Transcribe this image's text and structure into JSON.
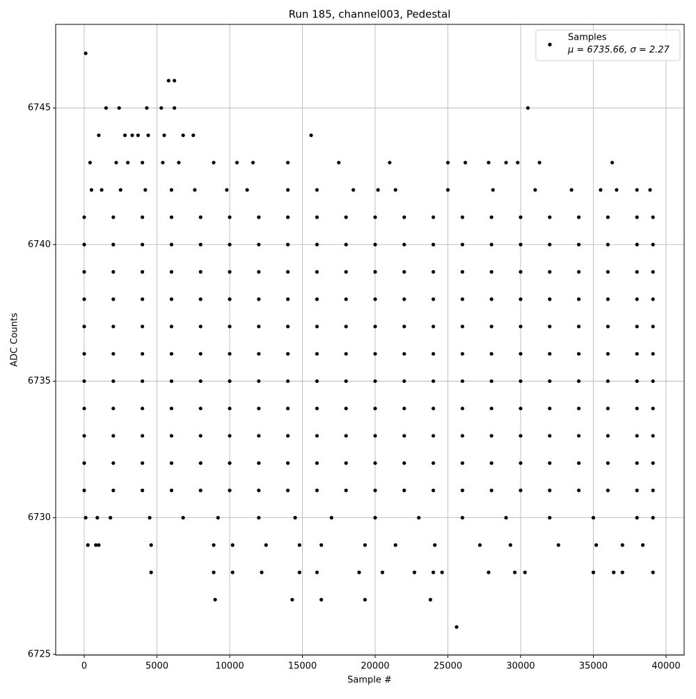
{
  "chart_data": {
    "type": "scatter",
    "title": "Run 185, channel003, Pedestal",
    "x_label": "Sample #",
    "y_label": "ADC Counts",
    "legend_note": "μ = 6735.66, σ = 2.27",
    "legend": "upper right",
    "grid": true,
    "xlim": [
      -1962,
      41244
    ],
    "ylim": [
      6724.97,
      6748.06
    ],
    "xticks": [
      0,
      5000,
      10000,
      15000,
      20000,
      25000,
      30000,
      35000,
      40000
    ],
    "yticks": [
      6725,
      6730,
      6735,
      6740,
      6745
    ],
    "x": [
      0,
      2000,
      4000,
      6000,
      8000,
      10000,
      12000,
      14000,
      16000,
      18000,
      20000,
      22000,
      24000,
      26000,
      28000,
      30000,
      32000,
      34000,
      36000,
      38000,
      39100,
      0,
      2000,
      4000,
      6000,
      8000,
      10000,
      12000,
      14000,
      16000,
      18000,
      20000,
      22000,
      24000,
      26000,
      28000,
      30000,
      32000,
      34000,
      36000,
      38000,
      39100,
      0,
      2000,
      4000,
      6000,
      8000,
      10000,
      12000,
      14000,
      16000,
      18000,
      20000,
      22000,
      24000,
      26000,
      28000,
      30000,
      32000,
      34000,
      36000,
      38000,
      39100,
      0,
      2000,
      4000,
      6000,
      8000,
      10000,
      12000,
      14000,
      16000,
      18000,
      20000,
      22000,
      24000,
      26000,
      28000,
      30000,
      32000,
      34000,
      36000,
      38000,
      39100,
      0,
      2000,
      4000,
      6000,
      8000,
      10000,
      12000,
      14000,
      16000,
      18000,
      20000,
      22000,
      24000,
      26000,
      28000,
      30000,
      32000,
      34000,
      36000,
      38000,
      39100,
      0,
      2000,
      4000,
      6000,
      8000,
      10000,
      12000,
      14000,
      16000,
      18000,
      20000,
      22000,
      24000,
      26000,
      28000,
      30000,
      32000,
      34000,
      36000,
      38000,
      39100,
      0,
      2000,
      4000,
      6000,
      8000,
      10000,
      12000,
      14000,
      16000,
      18000,
      20000,
      22000,
      24000,
      26000,
      28000,
      30000,
      32000,
      34000,
      36000,
      38000,
      39100,
      0,
      2000,
      4000,
      6000,
      8000,
      10000,
      12000,
      14000,
      16000,
      18000,
      20000,
      22000,
      24000,
      26000,
      28000,
      30000,
      32000,
      34000,
      36000,
      38000,
      39100,
      0,
      2000,
      4000,
      6000,
      8000,
      10000,
      12000,
      14000,
      16000,
      18000,
      20000,
      22000,
      24000,
      26000,
      28000,
      30000,
      32000,
      34000,
      36000,
      38000,
      39100,
      0,
      2000,
      4000,
      6000,
      8000,
      10000,
      12000,
      14000,
      16000,
      18000,
      20000,
      22000,
      24000,
      26000,
      28000,
      30000,
      32000,
      34000,
      36000,
      38000,
      39100,
      0,
      2000,
      4000,
      6000,
      8000,
      10000,
      12000,
      14000,
      16000,
      18000,
      20000,
      22000,
      24000,
      26000,
      28000,
      30000,
      32000,
      34000,
      36000,
      38000,
      39100,
      100,
      5800,
      6200,
      1500,
      2400,
      4300,
      5300,
      6200,
      30500,
      1000,
      2800,
      3300,
      3700,
      4400,
      5500,
      6800,
      7500,
      15600,
      400,
      2200,
      3000,
      4000,
      5400,
      6500,
      8900,
      10500,
      11600,
      14000,
      17500,
      21000,
      25000,
      26200,
      27800,
      29000,
      29800,
      31300,
      36300,
      500,
      1200,
      2500,
      4200,
      6000,
      7600,
      9800,
      11200,
      14000,
      16000,
      18500,
      20200,
      21400,
      25000,
      28100,
      31000,
      33500,
      35500,
      36600,
      38000,
      38900,
      100,
      900,
      1800,
      4500,
      6800,
      9200,
      12000,
      14500,
      17000,
      20000,
      23000,
      26000,
      29000,
      32000,
      35000,
      38000,
      39100,
      250,
      800,
      1000,
      4600,
      8900,
      10200,
      12500,
      14800,
      16300,
      19300,
      21400,
      24100,
      27200,
      29300,
      32600,
      35200,
      37000,
      38400,
      4600,
      8900,
      10200,
      12200,
      14800,
      16000,
      18900,
      20500,
      22700,
      24000,
      24600,
      27800,
      29600,
      30300,
      35000,
      36400,
      37000,
      39100,
      9000,
      14300,
      16300,
      19300,
      23800,
      25600
    ],
    "series": [
      {
        "name": "Samples",
        "color": "#000000",
        "values": [
          6731,
          6731,
          6731,
          6731,
          6731,
          6731,
          6731,
          6731,
          6731,
          6731,
          6731,
          6731,
          6731,
          6731,
          6731,
          6731,
          6731,
          6731,
          6731,
          6731,
          6731,
          6732,
          6732,
          6732,
          6732,
          6732,
          6732,
          6732,
          6732,
          6732,
          6732,
          6732,
          6732,
          6732,
          6732,
          6732,
          6732,
          6732,
          6732,
          6732,
          6732,
          6732,
          6733,
          6733,
          6733,
          6733,
          6733,
          6733,
          6733,
          6733,
          6733,
          6733,
          6733,
          6733,
          6733,
          6733,
          6733,
          6733,
          6733,
          6733,
          6733,
          6733,
          6733,
          6734,
          6734,
          6734,
          6734,
          6734,
          6734,
          6734,
          6734,
          6734,
          6734,
          6734,
          6734,
          6734,
          6734,
          6734,
          6734,
          6734,
          6734,
          6734,
          6734,
          6734,
          6735,
          6735,
          6735,
          6735,
          6735,
          6735,
          6735,
          6735,
          6735,
          6735,
          6735,
          6735,
          6735,
          6735,
          6735,
          6735,
          6735,
          6735,
          6735,
          6735,
          6735,
          6736,
          6736,
          6736,
          6736,
          6736,
          6736,
          6736,
          6736,
          6736,
          6736,
          6736,
          6736,
          6736,
          6736,
          6736,
          6736,
          6736,
          6736,
          6736,
          6736,
          6736,
          6737,
          6737,
          6737,
          6737,
          6737,
          6737,
          6737,
          6737,
          6737,
          6737,
          6737,
          6737,
          6737,
          6737,
          6737,
          6737,
          6737,
          6737,
          6737,
          6737,
          6737,
          6738,
          6738,
          6738,
          6738,
          6738,
          6738,
          6738,
          6738,
          6738,
          6738,
          6738,
          6738,
          6738,
          6738,
          6738,
          6738,
          6738,
          6738,
          6738,
          6738,
          6738,
          6739,
          6739,
          6739,
          6739,
          6739,
          6739,
          6739,
          6739,
          6739,
          6739,
          6739,
          6739,
          6739,
          6739,
          6739,
          6739,
          6739,
          6739,
          6739,
          6739,
          6739,
          6740,
          6740,
          6740,
          6740,
          6740,
          6740,
          6740,
          6740,
          6740,
          6740,
          6740,
          6740,
          6740,
          6740,
          6740,
          6740,
          6740,
          6740,
          6740,
          6740,
          6740,
          6741,
          6741,
          6741,
          6741,
          6741,
          6741,
          6741,
          6741,
          6741,
          6741,
          6741,
          6741,
          6741,
          6741,
          6741,
          6741,
          6741,
          6741,
          6741,
          6741,
          6741,
          6747,
          6746,
          6746,
          6745,
          6745,
          6745,
          6745,
          6745,
          6745,
          6744,
          6744,
          6744,
          6744,
          6744,
          6744,
          6744,
          6744,
          6744,
          6743,
          6743,
          6743,
          6743,
          6743,
          6743,
          6743,
          6743,
          6743,
          6743,
          6743,
          6743,
          6743,
          6743,
          6743,
          6743,
          6743,
          6743,
          6743,
          6742,
          6742,
          6742,
          6742,
          6742,
          6742,
          6742,
          6742,
          6742,
          6742,
          6742,
          6742,
          6742,
          6742,
          6742,
          6742,
          6742,
          6742,
          6742,
          6742,
          6742,
          6730,
          6730,
          6730,
          6730,
          6730,
          6730,
          6730,
          6730,
          6730,
          6730,
          6730,
          6730,
          6730,
          6730,
          6730,
          6730,
          6730,
          6729,
          6729,
          6729,
          6729,
          6729,
          6729,
          6729,
          6729,
          6729,
          6729,
          6729,
          6729,
          6729,
          6729,
          6729,
          6729,
          6729,
          6729,
          6728,
          6728,
          6728,
          6728,
          6728,
          6728,
          6728,
          6728,
          6728,
          6728,
          6728,
          6728,
          6728,
          6728,
          6728,
          6728,
          6728,
          6728,
          6727,
          6727,
          6727,
          6727,
          6727,
          6726
        ]
      }
    ]
  }
}
